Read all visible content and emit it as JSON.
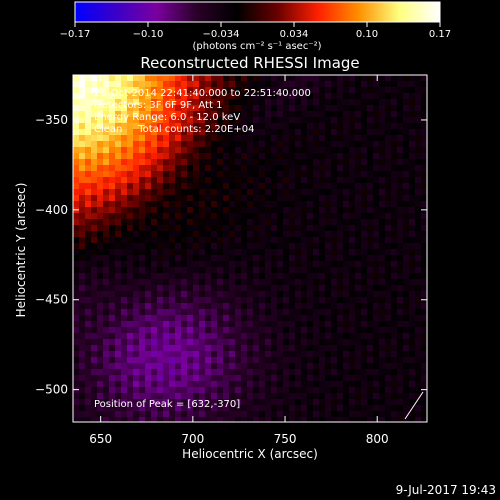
{
  "colorbar": {
    "tick_labels": [
      "−0.17",
      "−0.10",
      "−0.034",
      "0.034",
      "0.10",
      "0.17"
    ],
    "range": [
      -0.17,
      0.17
    ],
    "unit_label": "(photons cm⁻² s⁻¹ asec⁻²)",
    "colors": [
      "#0000ff",
      "#3a00c8",
      "#7a00a0",
      "#2a0028",
      "#000000",
      "#6a0000",
      "#ff2000",
      "#ff9000",
      "#ffff80",
      "#ffffff"
    ]
  },
  "chart_data": {
    "type": "heatmap",
    "title": "Reconstructed RHESSI Image",
    "xlabel": "Heliocentric X (arcsec)",
    "ylabel": "Heliocentric Y (arcsec)",
    "xlim": [
      635,
      827
    ],
    "ylim": [
      -518,
      -325
    ],
    "x_ticks": [
      650,
      700,
      750,
      800
    ],
    "y_ticks": [
      -350,
      -400,
      -450,
      -500
    ],
    "x_tick_labels": [
      "650",
      "700",
      "750",
      "800"
    ],
    "y_tick_labels": [
      "−350",
      "−400",
      "−450",
      "−500"
    ],
    "peak": {
      "x": 632,
      "y": -370
    },
    "annotations": [
      "26-Oct-2014 22:41:40.000 to 22:51:40.000",
      "Detectors: 3F 6F 9F, Att 1",
      "Energy Range: 6.0 - 12.0 keV",
      "Clean     Total counts: 2.20E+04",
      "Position of Peak = [632,-370]"
    ],
    "colorbar_range": [
      -0.17,
      0.17
    ]
  },
  "timestamp": "9-Jul-2017 19:43"
}
